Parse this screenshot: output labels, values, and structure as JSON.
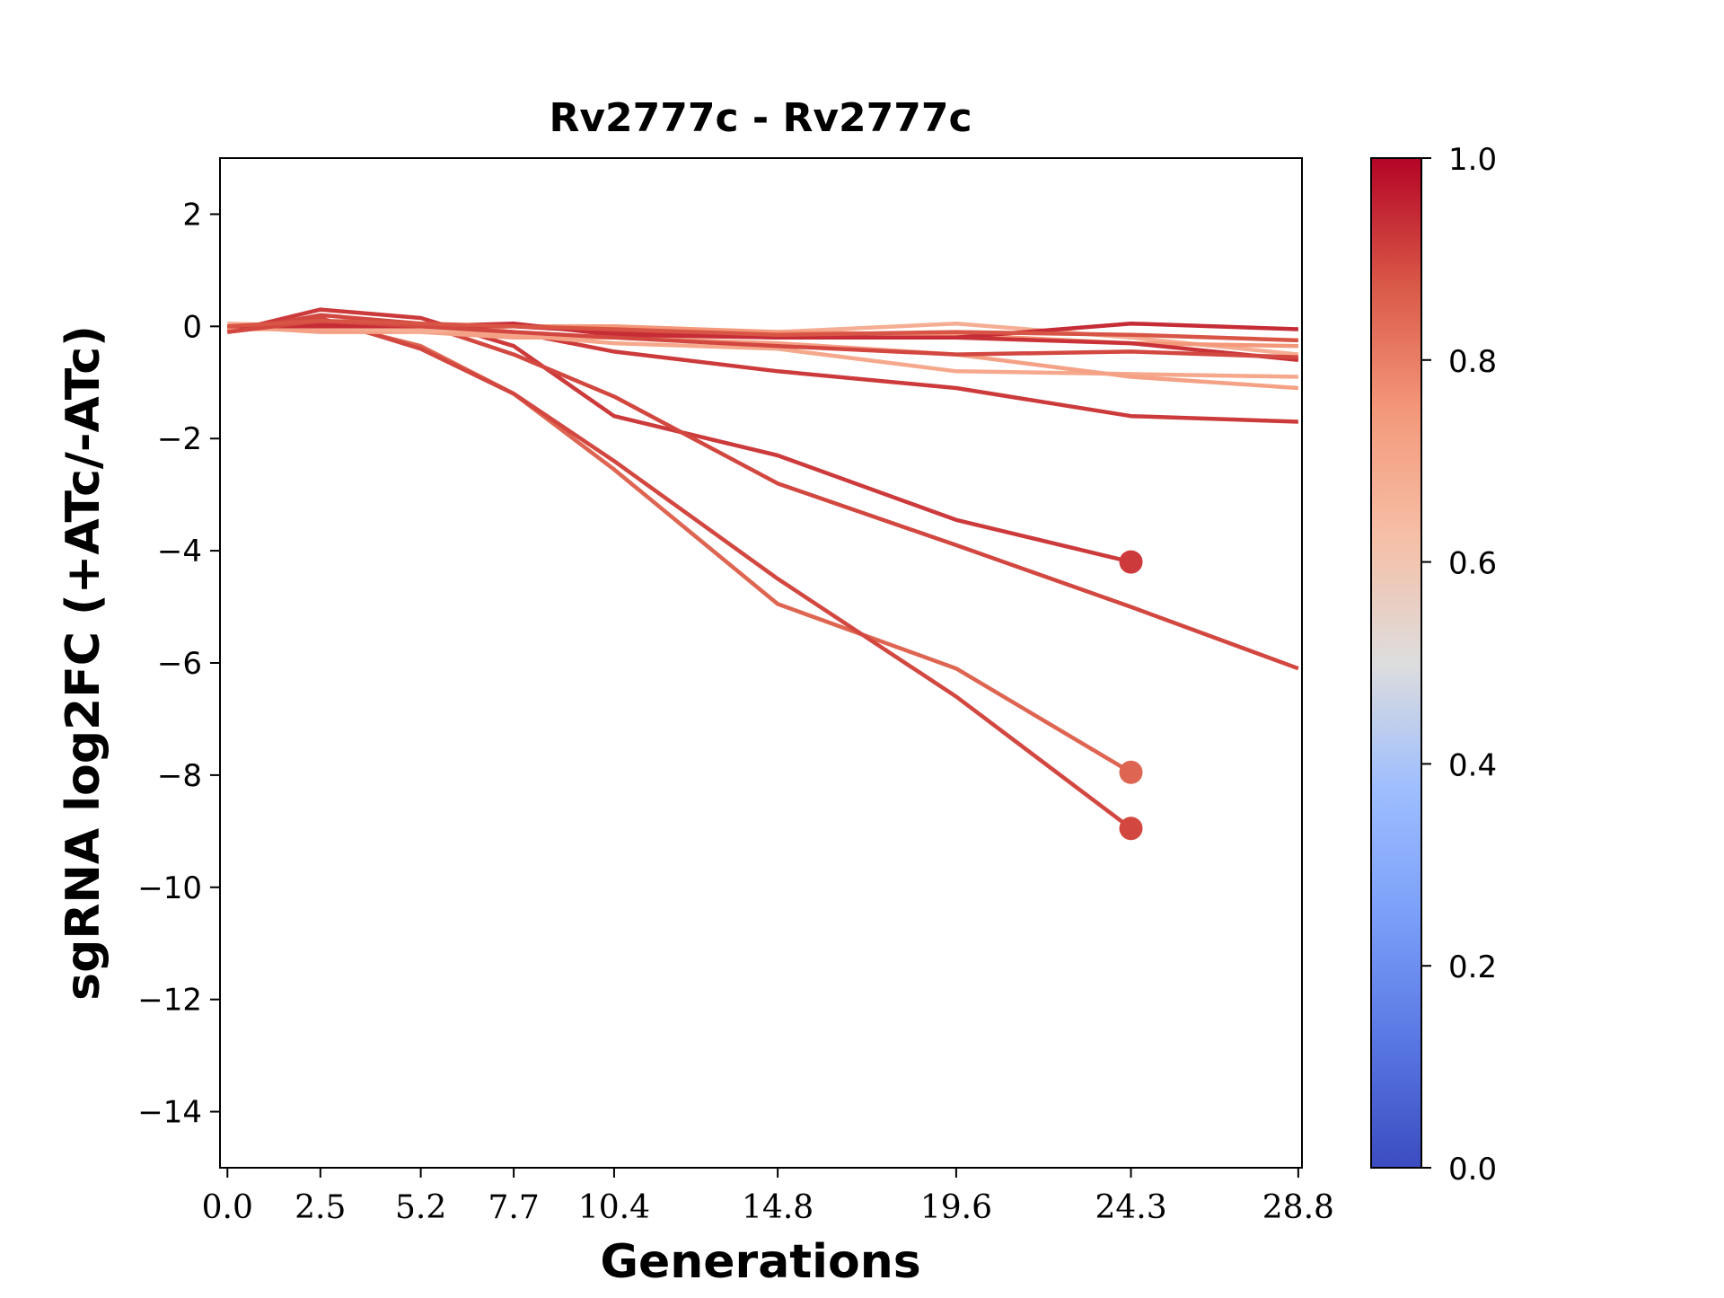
{
  "chart_data": {
    "type": "line",
    "title": "Rv2777c - Rv2777c",
    "xlabel": "Generations",
    "ylabel": "sgRNA log2FC (+ATc/-ATc)",
    "x_ticks": [
      "0.0",
      "2.5",
      "5.2",
      "7.7",
      "10.4",
      "14.8",
      "19.6",
      "24.3",
      "28.8"
    ],
    "x_tick_values": [
      0.0,
      2.5,
      5.2,
      7.7,
      10.4,
      14.8,
      19.6,
      24.3,
      28.8
    ],
    "y_ticks": [
      "2",
      "0",
      "−2",
      "−4",
      "−6",
      "−8",
      "−10",
      "−12",
      "−14"
    ],
    "y_tick_values": [
      2,
      0,
      -2,
      -4,
      -6,
      -8,
      -10,
      -12,
      -14
    ],
    "xlim": [
      -0.2,
      28.9
    ],
    "ylim": [
      -15,
      3
    ],
    "grid": false,
    "colorbar": {
      "colormap": "coolwarm",
      "range": [
        0.0,
        1.0
      ],
      "ticks": [
        "0.0",
        "0.2",
        "0.4",
        "0.6",
        "0.8",
        "1.0"
      ],
      "tick_values": [
        0.0,
        0.2,
        0.4,
        0.6,
        0.8,
        1.0
      ]
    },
    "series": [
      {
        "color_value": 0.92,
        "x": [
          0.0,
          2.5,
          5.2,
          7.7,
          10.4,
          14.8,
          19.6,
          24.3
        ],
        "y": [
          -0.1,
          0.3,
          0.15,
          -0.35,
          -1.6,
          -2.3,
          -3.45,
          -4.2
        ],
        "end_marker": true
      },
      {
        "color_value": 0.85,
        "x": [
          0.0,
          2.5,
          5.2,
          7.7,
          10.4,
          14.8,
          19.6,
          24.3
        ],
        "y": [
          0.0,
          0.1,
          -0.35,
          -1.2,
          -2.55,
          -4.95,
          -6.1,
          -7.95
        ],
        "end_marker": true
      },
      {
        "color_value": 0.9,
        "x": [
          0.0,
          2.5,
          5.2,
          7.7,
          10.4,
          14.8,
          19.6,
          24.3
        ],
        "y": [
          -0.05,
          0.15,
          -0.4,
          -1.2,
          -2.4,
          -4.5,
          -6.6,
          -8.95
        ],
        "end_marker": true
      },
      {
        "color_value": 0.9,
        "x": [
          0.0,
          2.5,
          5.2,
          7.7,
          10.4,
          14.8,
          19.6,
          24.3,
          28.8
        ],
        "y": [
          -0.1,
          0.2,
          0.05,
          -0.5,
          -1.25,
          -2.8,
          -3.9,
          -5.0,
          -6.1
        ],
        "end_marker": false
      },
      {
        "color_value": 0.92,
        "x": [
          0.0,
          2.5,
          5.2,
          7.7,
          10.4,
          14.8,
          19.6,
          24.3,
          28.8
        ],
        "y": [
          -0.1,
          0.1,
          0.0,
          -0.1,
          -0.45,
          -0.8,
          -1.1,
          -1.6,
          -1.7
        ],
        "end_marker": false
      },
      {
        "color_value": 0.7,
        "x": [
          0.0,
          2.5,
          5.2,
          7.7,
          10.4,
          14.8,
          19.6,
          24.3,
          28.8
        ],
        "y": [
          -0.05,
          -0.05,
          -0.05,
          -0.15,
          -0.3,
          -0.4,
          -0.8,
          -0.85,
          -0.9
        ],
        "end_marker": false
      },
      {
        "color_value": 0.72,
        "x": [
          0.0,
          2.5,
          5.2,
          7.7,
          10.4,
          14.8,
          19.6,
          24.3,
          28.8
        ],
        "y": [
          0.0,
          -0.1,
          -0.1,
          -0.2,
          -0.2,
          -0.3,
          -0.5,
          -0.9,
          -1.1
        ],
        "end_marker": false
      },
      {
        "color_value": 0.68,
        "x": [
          0.0,
          2.5,
          5.2,
          7.7,
          10.4,
          14.8,
          19.6,
          24.3,
          28.8
        ],
        "y": [
          0.05,
          0.0,
          -0.1,
          0.0,
          -0.1,
          -0.1,
          0.05,
          -0.2,
          -0.5
        ],
        "end_marker": false
      },
      {
        "color_value": 0.75,
        "x": [
          0.0,
          2.5,
          5.2,
          7.7,
          10.4,
          14.8,
          19.6,
          24.3,
          28.8
        ],
        "y": [
          -0.05,
          0.05,
          0.0,
          0.0,
          0.0,
          -0.1,
          -0.15,
          -0.3,
          -0.35
        ],
        "end_marker": false
      },
      {
        "color_value": 0.93,
        "x": [
          0.0,
          2.5,
          5.2,
          7.7,
          10.4,
          14.8,
          19.6,
          24.3,
          28.8
        ],
        "y": [
          0.0,
          0.05,
          0.0,
          0.0,
          -0.1,
          -0.2,
          -0.2,
          -0.3,
          -0.6
        ],
        "end_marker": false
      },
      {
        "color_value": 0.94,
        "x": [
          0.0,
          2.5,
          5.2,
          7.7,
          10.4,
          14.8,
          19.6,
          24.3,
          28.8
        ],
        "y": [
          0.0,
          0.0,
          0.0,
          0.05,
          -0.15,
          -0.2,
          -0.2,
          0.05,
          -0.05
        ],
        "end_marker": false
      },
      {
        "color_value": 0.9,
        "x": [
          0.0,
          2.5,
          5.2,
          7.7,
          10.4,
          14.8,
          19.6,
          24.3,
          28.8
        ],
        "y": [
          -0.1,
          0.1,
          0.0,
          -0.1,
          -0.2,
          -0.35,
          -0.5,
          -0.45,
          -0.55
        ],
        "end_marker": false
      },
      {
        "color_value": 0.88,
        "x": [
          0.0,
          2.5,
          5.2,
          7.7,
          10.4,
          14.8,
          19.6,
          24.3,
          28.8
        ],
        "y": [
          0.0,
          0.1,
          0.05,
          0.0,
          -0.05,
          -0.15,
          -0.1,
          -0.15,
          -0.25
        ],
        "end_marker": false
      }
    ]
  }
}
